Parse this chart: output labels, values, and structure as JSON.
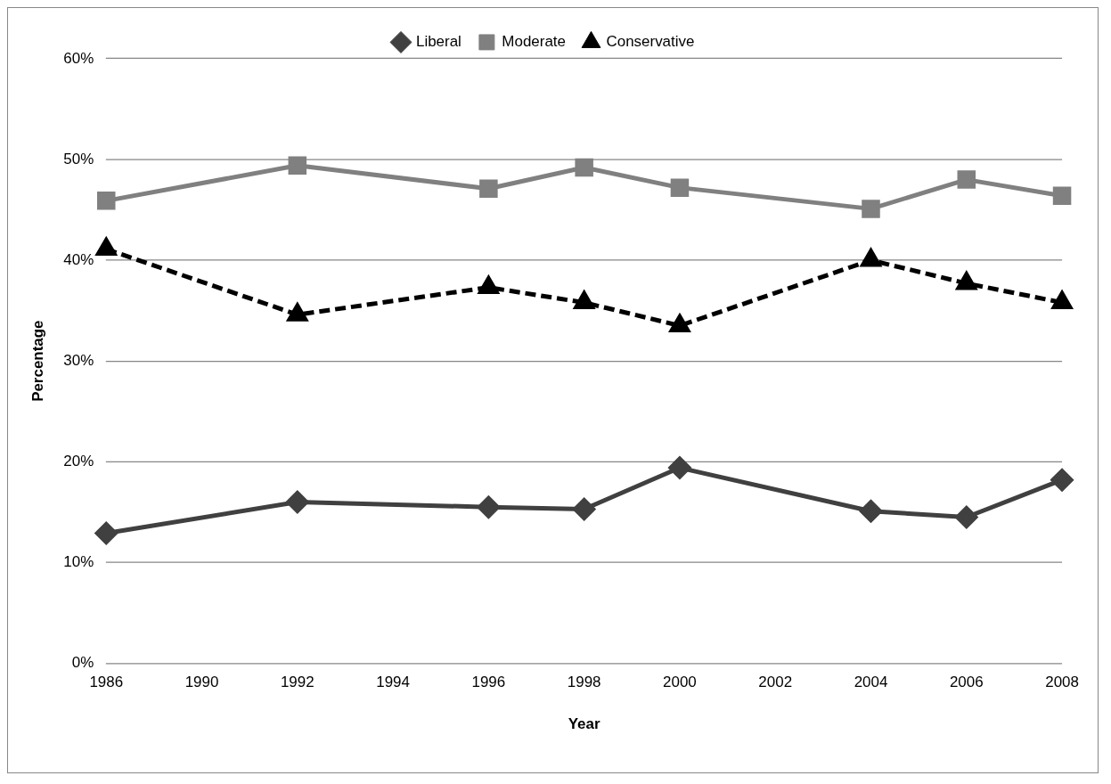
{
  "chart_data": {
    "type": "line",
    "xlabel": "Year",
    "ylabel": "Percentage",
    "categories": [
      "1986",
      "1990",
      "1992",
      "1994",
      "1996",
      "1998",
      "2000",
      "2002",
      "2004",
      "2006",
      "2008"
    ],
    "series": [
      {
        "name": "Liberal",
        "color": "#404040",
        "marker": "diamond",
        "line_style": "solid",
        "values": [
          12.9,
          null,
          16.0,
          null,
          15.5,
          15.3,
          19.4,
          null,
          15.1,
          14.5,
          18.2
        ]
      },
      {
        "name": "Moderate",
        "color": "#808080",
        "marker": "square",
        "line_style": "solid",
        "values": [
          45.9,
          null,
          49.4,
          null,
          47.1,
          49.2,
          47.2,
          null,
          45.1,
          48.0,
          46.4
        ]
      },
      {
        "name": "Conservative",
        "color": "#000000",
        "marker": "triangle",
        "line_style": "dashed",
        "values": [
          41.1,
          null,
          34.6,
          null,
          37.3,
          35.8,
          33.5,
          null,
          40.0,
          37.7,
          35.8
        ]
      }
    ],
    "ylim": [
      0,
      60
    ],
    "yticks": [
      {
        "value": 0,
        "label": "0%"
      },
      {
        "value": 10,
        "label": "10%"
      },
      {
        "value": 20,
        "label": "20%"
      },
      {
        "value": 30,
        "label": "30%"
      },
      {
        "value": 40,
        "label": "40%"
      },
      {
        "value": 50,
        "label": "50%"
      },
      {
        "value": 60,
        "label": "60%"
      }
    ],
    "grid": "y",
    "legend": "top"
  }
}
